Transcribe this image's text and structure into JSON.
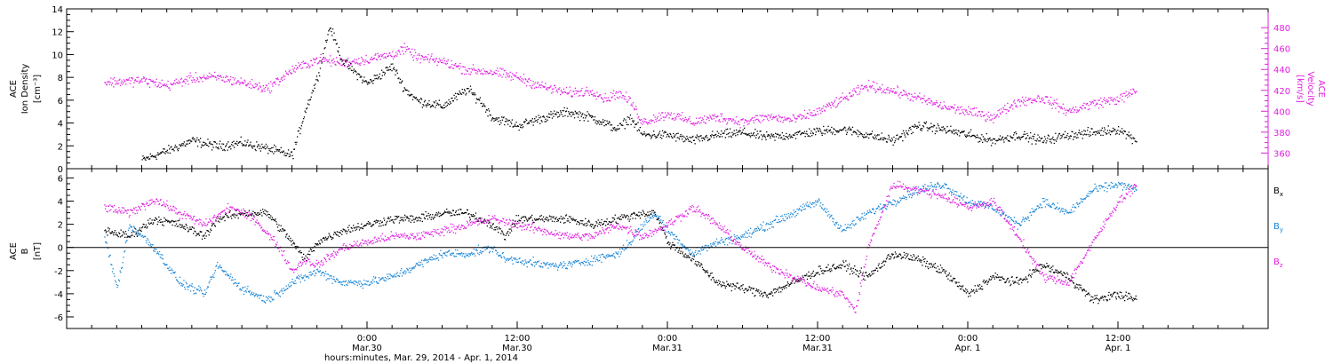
{
  "colors": {
    "black": "#000000",
    "magenta": "#e020e0",
    "blue": "#1a86d6"
  },
  "chart_data": [
    {
      "type": "scatter",
      "panel": "top",
      "ylabel": [
        "ACE",
        "Ion Density",
        "[cm⁻³]"
      ],
      "ylim": [
        0,
        14
      ],
      "yticks": [
        0,
        2,
        4,
        6,
        8,
        10,
        12,
        14
      ],
      "right_ylabel": [
        "ACE",
        "Velocity",
        "[km/s]"
      ],
      "right_ylim": [
        345,
        498
      ],
      "right_yticks": [
        360,
        380,
        400,
        420,
        440,
        460,
        480
      ],
      "grid": false,
      "x_unit": "hours since Mar. 29, 2014 00:00 UT",
      "series": [
        {
          "axis": "left",
          "color": "black",
          "points": [
            [
              6,
              0.8
            ],
            [
              8,
              1.6
            ],
            [
              10,
              2.5
            ],
            [
              12,
              2.0
            ],
            [
              14,
              2.3
            ],
            [
              16,
              1.8
            ],
            [
              18,
              1.2
            ],
            [
              19,
              5.0
            ],
            [
              20,
              8.0
            ],
            [
              21,
              12.5
            ],
            [
              22,
              9.5
            ],
            [
              24,
              7.5
            ],
            [
              26,
              9.0
            ],
            [
              27,
              7.0
            ],
            [
              28,
              6.0
            ],
            [
              30,
              5.5
            ],
            [
              32,
              7.0
            ],
            [
              33,
              6.0
            ],
            [
              34,
              4.5
            ],
            [
              35,
              4.2
            ],
            [
              36,
              3.8
            ],
            [
              38,
              4.5
            ],
            [
              40,
              5.0
            ],
            [
              42,
              4.5
            ],
            [
              44,
              3.5
            ],
            [
              45,
              4.5
            ],
            [
              46,
              3.0
            ],
            [
              48,
              3.0
            ],
            [
              50,
              2.5
            ],
            [
              52,
              3.0
            ],
            [
              54,
              3.2
            ],
            [
              56,
              2.8
            ],
            [
              58,
              3.0
            ],
            [
              60,
              3.3
            ],
            [
              62,
              3.5
            ],
            [
              64,
              3.0
            ],
            [
              66,
              2.5
            ],
            [
              68,
              3.8
            ],
            [
              70,
              3.5
            ],
            [
              72,
              3.0
            ],
            [
              74,
              2.5
            ],
            [
              76,
              3.0
            ],
            [
              78,
              2.5
            ],
            [
              80,
              3.0
            ],
            [
              82,
              3.2
            ],
            [
              84,
              3.5
            ],
            [
              85.5,
              2.5
            ]
          ]
        },
        {
          "axis": "right",
          "color": "magenta",
          "points": [
            [
              3,
              428
            ],
            [
              6,
              430
            ],
            [
              8,
              425
            ],
            [
              10,
              432
            ],
            [
              12,
              433
            ],
            [
              14,
              428
            ],
            [
              16,
              422
            ],
            [
              18,
              440
            ],
            [
              20,
              450
            ],
            [
              22,
              447
            ],
            [
              24,
              450
            ],
            [
              26,
              455
            ],
            [
              27,
              460
            ],
            [
              28,
              452
            ],
            [
              30,
              448
            ],
            [
              32,
              440
            ],
            [
              34,
              438
            ],
            [
              36,
              433
            ],
            [
              38,
              424
            ],
            [
              40,
              418
            ],
            [
              42,
              420
            ],
            [
              43,
              412
            ],
            [
              44,
              418
            ],
            [
              45,
              410
            ],
            [
              46,
              390
            ],
            [
              48,
              398
            ],
            [
              50,
              390
            ],
            [
              52,
              395
            ],
            [
              54,
              390
            ],
            [
              56,
              395
            ],
            [
              58,
              392
            ],
            [
              60,
              400
            ],
            [
              62,
              412
            ],
            [
              64,
              425
            ],
            [
              66,
              420
            ],
            [
              68,
              413
            ],
            [
              70,
              405
            ],
            [
              72,
              400
            ],
            [
              74,
              395
            ],
            [
              76,
              410
            ],
            [
              78,
              413
            ],
            [
              80,
              400
            ],
            [
              82,
              408
            ],
            [
              84,
              412
            ],
            [
              85.5,
              420
            ]
          ]
        }
      ]
    },
    {
      "type": "scatter",
      "panel": "bottom",
      "ylabel": [
        "ACE",
        "B",
        "[nT]"
      ],
      "ylim": [
        -7,
        6.8
      ],
      "yticks": [
        -6,
        -4,
        -2,
        0,
        2,
        4,
        6
      ],
      "zero_line": true,
      "x_unit": "hours since Mar. 29, 2014 00:00 UT",
      "legend": {
        "placement": "right",
        "items": [
          "Bx",
          "By",
          "Bz"
        ]
      },
      "series": [
        {
          "name": "Bx",
          "color": "black",
          "points": [
            [
              3,
              1.5
            ],
            [
              5,
              1.0
            ],
            [
              7,
              2.5
            ],
            [
              9,
              2.0
            ],
            [
              11,
              1.0
            ],
            [
              12,
              2.5
            ],
            [
              14,
              3.0
            ],
            [
              16,
              3.0
            ],
            [
              18,
              0.5
            ],
            [
              19,
              -1.0
            ],
            [
              20,
              0.5
            ],
            [
              22,
              1.5
            ],
            [
              24,
              2.0
            ],
            [
              26,
              2.5
            ],
            [
              28,
              2.5
            ],
            [
              30,
              3.0
            ],
            [
              32,
              3.0
            ],
            [
              34,
              2.0
            ],
            [
              35,
              1.0
            ],
            [
              36,
              2.5
            ],
            [
              38,
              2.5
            ],
            [
              40,
              2.5
            ],
            [
              42,
              2.0
            ],
            [
              44,
              2.5
            ],
            [
              46,
              3.0
            ],
            [
              47,
              3.0
            ],
            [
              48,
              0.5
            ],
            [
              50,
              -1.0
            ],
            [
              52,
              -3.0
            ],
            [
              54,
              -3.5
            ],
            [
              56,
              -4.0
            ],
            [
              58,
              -3.0
            ],
            [
              60,
              -2.0
            ],
            [
              62,
              -1.5
            ],
            [
              64,
              -2.5
            ],
            [
              66,
              -0.5
            ],
            [
              68,
              -1.0
            ],
            [
              70,
              -2.0
            ],
            [
              72,
              -4.0
            ],
            [
              74,
              -2.5
            ],
            [
              76,
              -3.0
            ],
            [
              78,
              -1.5
            ],
            [
              80,
              -2.5
            ],
            [
              82,
              -4.5
            ],
            [
              84,
              -4.0
            ],
            [
              85.5,
              -4.5
            ]
          ]
        },
        {
          "name": "By",
          "color": "blue",
          "points": [
            [
              3,
              1.0
            ],
            [
              4,
              -3.5
            ],
            [
              5,
              2.0
            ],
            [
              7,
              0.0
            ],
            [
              9,
              -3.0
            ],
            [
              11,
              -4.0
            ],
            [
              12,
              -1.5
            ],
            [
              14,
              -3.5
            ],
            [
              16,
              -4.5
            ],
            [
              18,
              -3.0
            ],
            [
              20,
              -2.0
            ],
            [
              22,
              -3.0
            ],
            [
              24,
              -3.0
            ],
            [
              26,
              -2.5
            ],
            [
              28,
              -1.5
            ],
            [
              30,
              -0.5
            ],
            [
              32,
              -0.5
            ],
            [
              34,
              0.0
            ],
            [
              35,
              -1.0
            ],
            [
              36,
              -1.0
            ],
            [
              38,
              -1.5
            ],
            [
              40,
              -1.5
            ],
            [
              42,
              -1.0
            ],
            [
              44,
              -0.5
            ],
            [
              45,
              0.5
            ],
            [
              46,
              2.0
            ],
            [
              47,
              3.0
            ],
            [
              48,
              1.5
            ],
            [
              50,
              -0.5
            ],
            [
              52,
              0.5
            ],
            [
              54,
              1.0
            ],
            [
              56,
              2.0
            ],
            [
              58,
              3.0
            ],
            [
              60,
              4.0
            ],
            [
              62,
              1.5
            ],
            [
              64,
              3.0
            ],
            [
              66,
              4.0
            ],
            [
              68,
              5.0
            ],
            [
              70,
              5.5
            ],
            [
              72,
              4.0
            ],
            [
              74,
              3.5
            ],
            [
              76,
              2.0
            ],
            [
              78,
              4.0
            ],
            [
              80,
              3.0
            ],
            [
              82,
              5.0
            ],
            [
              84,
              5.5
            ],
            [
              85.5,
              5.0
            ]
          ]
        },
        {
          "name": "Bz",
          "color": "magenta",
          "points": [
            [
              3,
              3.5
            ],
            [
              5,
              3.0
            ],
            [
              7,
              4.2
            ],
            [
              9,
              3.0
            ],
            [
              11,
              2.0
            ],
            [
              13,
              3.5
            ],
            [
              15,
              2.5
            ],
            [
              17,
              0.0
            ],
            [
              18,
              -2.0
            ],
            [
              19,
              -1.0
            ],
            [
              20,
              -1.5
            ],
            [
              22,
              0.0
            ],
            [
              24,
              0.5
            ],
            [
              26,
              1.0
            ],
            [
              28,
              1.0
            ],
            [
              30,
              1.5
            ],
            [
              32,
              2.0
            ],
            [
              34,
              2.5
            ],
            [
              36,
              2.0
            ],
            [
              38,
              1.5
            ],
            [
              40,
              1.0
            ],
            [
              42,
              1.0
            ],
            [
              44,
              2.0
            ],
            [
              46,
              1.0
            ],
            [
              48,
              2.0
            ],
            [
              50,
              3.5
            ],
            [
              52,
              2.0
            ],
            [
              54,
              0.0
            ],
            [
              56,
              -1.5
            ],
            [
              58,
              -2.5
            ],
            [
              60,
              -3.5
            ],
            [
              62,
              -4.0
            ],
            [
              63,
              -5.5
            ],
            [
              64,
              0.0
            ],
            [
              66,
              5.5
            ],
            [
              68,
              5.0
            ],
            [
              70,
              4.5
            ],
            [
              72,
              3.5
            ],
            [
              74,
              4.0
            ],
            [
              76,
              1.0
            ],
            [
              78,
              -2.5
            ],
            [
              80,
              -3.0
            ],
            [
              82,
              0.5
            ],
            [
              84,
              4.0
            ],
            [
              85.5,
              5.5
            ]
          ]
        }
      ]
    }
  ],
  "x_axis": {
    "xlim": [
      0,
      96
    ],
    "major_ticks": [
      {
        "x": 24,
        "line1": "0:00",
        "line2": "Mar.30"
      },
      {
        "x": 36,
        "line1": "12:00",
        "line2": "Mar.30"
      },
      {
        "x": 48,
        "line1": "0:00",
        "line2": "Mar.31"
      },
      {
        "x": 60,
        "line1": "12:00",
        "line2": "Mar.31"
      },
      {
        "x": 72,
        "line1": "0:00",
        "line2": "Apr. 1"
      },
      {
        "x": 84,
        "line1": "12:00",
        "line2": "Apr. 1"
      }
    ],
    "minor_step_hours": 2,
    "xlabel": "hours:minutes, Mar. 29, 2014 - Apr.  1, 2014"
  }
}
